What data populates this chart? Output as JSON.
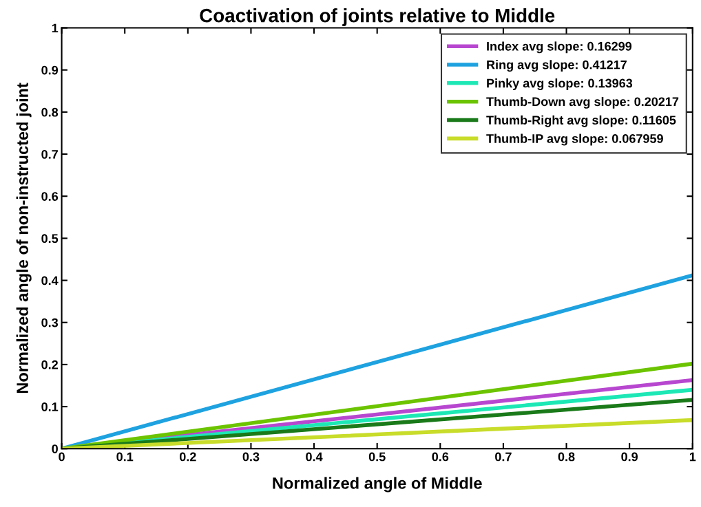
{
  "chart_data": {
    "type": "line",
    "title": "Coactivation of joints relative to Middle",
    "xlabel": "Normalized angle of Middle",
    "ylabel": "Normalized angle of non-instructed joint",
    "x": [
      0,
      1
    ],
    "series": [
      {
        "name": "Index avg slope: 0.16299",
        "color": "#b847d0",
        "values": [
          0,
          0.163
        ]
      },
      {
        "name": "Ring avg slope: 0.41217",
        "color": "#1ea2e0",
        "values": [
          0,
          0.412
        ]
      },
      {
        "name": "Pinky avg slope: 0.13963",
        "color": "#1de8b5",
        "values": [
          0,
          0.14
        ]
      },
      {
        "name": "Thumb-Down avg slope: 0.20217",
        "color": "#6cc400",
        "values": [
          0,
          0.202
        ]
      },
      {
        "name": "Thumb-Right avg slope: 0.11605",
        "color": "#1a7a1a",
        "values": [
          0,
          0.116
        ]
      },
      {
        "name": "Thumb-IP avg slope: 0.067959",
        "color": "#c8dc2a",
        "values": [
          0,
          0.068
        ]
      }
    ],
    "xlim": [
      0,
      1
    ],
    "ylim": [
      0,
      1
    ],
    "xticks": [
      0,
      0.1,
      0.2,
      0.3,
      0.4,
      0.5,
      0.6,
      0.7,
      0.8,
      0.9,
      1
    ],
    "yticks": [
      0,
      0.1,
      0.2,
      0.3,
      0.4,
      0.5,
      0.6,
      0.7,
      0.8,
      0.9,
      1
    ],
    "grid": false,
    "legend": "top right",
    "marker": "none",
    "line_style": "solid"
  }
}
